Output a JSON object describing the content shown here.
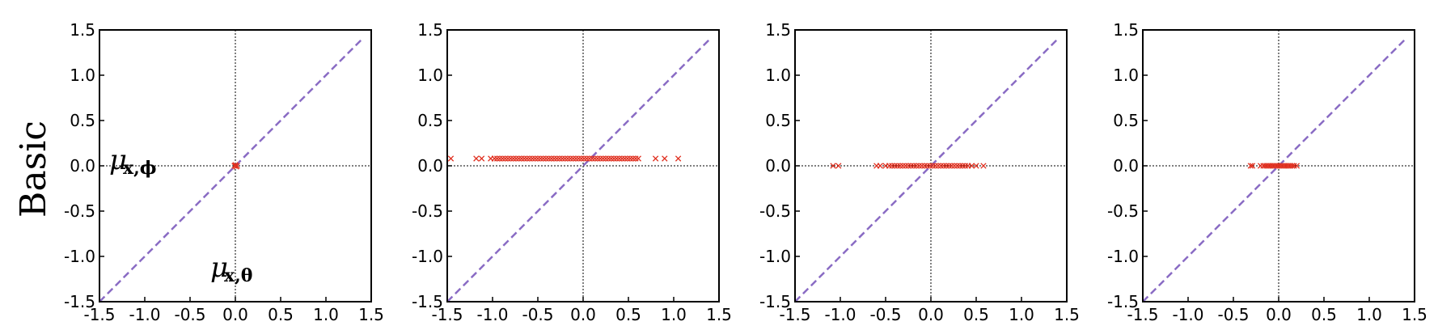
{
  "row_label": "Basic",
  "colors": {
    "marker": "#e03020",
    "diagonal": "#8a6cc4",
    "axis_zero": "#000000",
    "frame": "#000000"
  },
  "annotations": {
    "y_mu": "μ",
    "y_sub": "x,ϕ",
    "x_mu": "μ",
    "x_sub": "x,θ"
  },
  "chart_data": [
    {
      "type": "scatter",
      "marker": "x",
      "xlim": [
        -1.5,
        1.5
      ],
      "ylim": [
        -1.5,
        1.5
      ],
      "xticks": [
        "-1.5",
        "-1.0",
        "-0.5",
        "0.0",
        "0.5",
        "1.0",
        "1.5"
      ],
      "yticks": [
        "1.5",
        "1.0",
        "0.5",
        "0.0",
        "-0.5",
        "-1.0",
        "-1.5"
      ],
      "reference_lines": [
        "y=x dashed",
        "x=0 dotted",
        "y=0 dotted"
      ],
      "grid": false,
      "points": [
        [
          -0.01,
          0.0
        ],
        [
          0.0,
          0.01
        ],
        [
          0.01,
          -0.01
        ],
        [
          0.0,
          0.0
        ],
        [
          0.02,
          0.0
        ]
      ]
    },
    {
      "type": "scatter",
      "marker": "x",
      "xlim": [
        -1.5,
        1.5
      ],
      "ylim": [
        -1.5,
        1.5
      ],
      "xticks": [
        "-1.5",
        "-1.0",
        "-0.5",
        "0.0",
        "0.5",
        "1.0",
        "1.5"
      ],
      "yticks": [
        "1.5",
        "1.0",
        "0.5",
        "0.0",
        "-0.5",
        "-1.0",
        "-1.5"
      ],
      "reference_lines": [
        "y=x dashed",
        "x=0 dotted",
        "y=0 dotted"
      ],
      "grid": false,
      "y_value": 0.08,
      "x_values": [
        -1.46,
        -1.18,
        -1.12,
        -1.02,
        -0.98,
        -0.95,
        -0.92,
        -0.89,
        -0.86,
        -0.83,
        -0.8,
        -0.77,
        -0.74,
        -0.71,
        -0.68,
        -0.65,
        -0.62,
        -0.59,
        -0.56,
        -0.53,
        -0.5,
        -0.47,
        -0.44,
        -0.41,
        -0.38,
        -0.35,
        -0.32,
        -0.29,
        -0.26,
        -0.23,
        -0.2,
        -0.17,
        -0.14,
        -0.11,
        -0.08,
        -0.05,
        -0.02,
        0.01,
        0.04,
        0.07,
        0.1,
        0.13,
        0.16,
        0.19,
        0.22,
        0.25,
        0.28,
        0.31,
        0.34,
        0.37,
        0.4,
        0.43,
        0.46,
        0.49,
        0.52,
        0.55,
        0.58,
        0.61,
        0.8,
        0.9,
        1.05
      ]
    },
    {
      "type": "scatter",
      "marker": "x",
      "xlim": [
        -1.5,
        1.5
      ],
      "ylim": [
        -1.5,
        1.5
      ],
      "xticks": [
        "-1.5",
        "-1.0",
        "-0.5",
        "0.0",
        "0.5",
        "1.0",
        "1.5"
      ],
      "yticks": [
        "1.5",
        "1.0",
        "0.5",
        "0.0",
        "-0.5",
        "-1.0",
        "-1.5"
      ],
      "reference_lines": [
        "y=x dashed",
        "x=0 dotted",
        "y=0 dotted"
      ],
      "grid": false,
      "y_value": 0.0,
      "x_values": [
        -1.08,
        -1.02,
        -0.6,
        -0.56,
        -0.5,
        -0.46,
        -0.43,
        -0.4,
        -0.37,
        -0.34,
        -0.31,
        -0.28,
        -0.25,
        -0.22,
        -0.19,
        -0.16,
        -0.13,
        -0.1,
        -0.07,
        -0.04,
        -0.01,
        0.02,
        0.05,
        0.08,
        0.11,
        0.14,
        0.17,
        0.2,
        0.23,
        0.26,
        0.29,
        0.32,
        0.35,
        0.38,
        0.41,
        0.45,
        0.5,
        0.58
      ]
    },
    {
      "type": "scatter",
      "marker": "x",
      "xlim": [
        -1.5,
        1.5
      ],
      "ylim": [
        -1.5,
        1.5
      ],
      "xticks": [
        "-1.5",
        "-1.0",
        "-0.5",
        "0.0",
        "0.5",
        "1.0",
        "1.5"
      ],
      "yticks": [
        "1.5",
        "1.0",
        "0.5",
        "0.0",
        "-0.5",
        "-1.0",
        "-1.5"
      ],
      "reference_lines": [
        "y=x dashed",
        "x=0 dotted",
        "y=0 dotted"
      ],
      "grid": false,
      "y_value": 0.0,
      "x_values": [
        -0.31,
        -0.29,
        -0.2,
        -0.17,
        -0.15,
        -0.13,
        -0.11,
        -0.09,
        -0.07,
        -0.05,
        -0.03,
        -0.01,
        0.01,
        0.03,
        0.05,
        0.07,
        0.09,
        0.11,
        0.13,
        0.15,
        0.17,
        0.2
      ]
    }
  ]
}
